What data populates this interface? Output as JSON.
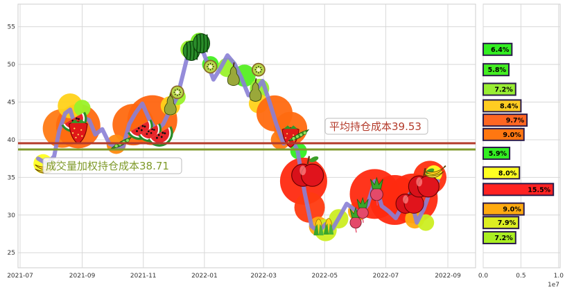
{
  "chart_data": [
    {
      "type": "line",
      "title": "",
      "xlabel": "",
      "ylabel": "",
      "ylim": [
        23,
        58
      ],
      "x_ticks": [
        "2021-07",
        "2021-09",
        "2021-11",
        "2022-01",
        "2022-03",
        "2022-05",
        "2022-07",
        "2022-09"
      ],
      "y_ticks": [
        25,
        30,
        35,
        40,
        45,
        50,
        55
      ],
      "grid": true,
      "series": [
        {
          "x": [
            "2021-07-19",
            "2021-07-28",
            "2021-08-04",
            "2021-08-09",
            "2021-08-15",
            "2021-08-20",
            "2021-08-25",
            "2021-09-01",
            "2021-09-08",
            "2021-09-14",
            "2021-09-21",
            "2021-09-28",
            "2021-10-06",
            "2021-10-12",
            "2021-10-18",
            "2021-10-24",
            "2021-10-31",
            "2021-11-07",
            "2021-11-14",
            "2021-11-21",
            "2021-11-28",
            "2021-12-05",
            "2021-12-11",
            "2021-12-17",
            "2021-12-22",
            "2021-12-27",
            "2022-01-03",
            "2022-01-10",
            "2022-01-17",
            "2022-01-24",
            "2022-01-31",
            "2022-02-07",
            "2022-02-14",
            "2022-02-21",
            "2022-02-28",
            "2022-03-07",
            "2022-03-14",
            "2022-03-21",
            "2022-03-28",
            "2022-04-04",
            "2022-04-11",
            "2022-04-18",
            "2022-04-25",
            "2022-05-02",
            "2022-05-09",
            "2022-05-16",
            "2022-05-23",
            "2022-05-30",
            "2022-06-06",
            "2022-06-13",
            "2022-06-20",
            "2022-06-27",
            "2022-07-04",
            "2022-07-11",
            "2022-07-18",
            "2022-07-25",
            "2022-08-01",
            "2022-08-08",
            "2022-08-15",
            "2022-08-22"
          ],
          "values": [
            37.5,
            36.8,
            37.8,
            41.2,
            43.5,
            44.0,
            41.8,
            43.0,
            42.6,
            40.7,
            41.4,
            39.5,
            38.9,
            39.1,
            42.1,
            43.5,
            44.8,
            42.7,
            41.2,
            42.1,
            44.0,
            45.7,
            48.9,
            52.1,
            51.3,
            53.0,
            50.5,
            48.0,
            49.5,
            51.2,
            50.1,
            48.2,
            45.9,
            46.5,
            47.8,
            45.0,
            42.0,
            39.5,
            40.5,
            38.5,
            33.0,
            28.5,
            27.8,
            28.8,
            28.2,
            29.8,
            31.5,
            30.8,
            30.1,
            31.4,
            34.5,
            31.2,
            30.5,
            29.6,
            31.3,
            32.8,
            29.0,
            30.8,
            33.4,
            34.5
          ],
          "color": "#8a7fd6"
        }
      ],
      "hlines": [
        {
          "label": "平均持仓成本39.53",
          "value": 39.53,
          "color": "#b33a2a"
        },
        {
          "label": "成交量加权持仓成本38.71",
          "value": 38.71,
          "color": "#7f9a2a"
        }
      ]
    },
    {
      "type": "bar",
      "orientation": "horizontal",
      "xlim": [
        0,
        10200000.0
      ],
      "x_ticks": [
        "0.0",
        "0.5",
        "1.0"
      ],
      "x_scale_label": "1e7",
      "bars": [
        {
          "price": 52.0,
          "value": 3800000.0,
          "label": "6.4%",
          "color": "#33ee22"
        },
        {
          "price": 49.3,
          "value": 3400000.0,
          "label": "5.8%",
          "color": "#44ee22"
        },
        {
          "price": 46.7,
          "value": 4300000.0,
          "label": "7.2%",
          "color": "#99ee33"
        },
        {
          "price": 44.5,
          "value": 5000000.0,
          "label": "8.4%",
          "color": "#ffcc22"
        },
        {
          "price": 42.6,
          "value": 5800000.0,
          "label": "9.7%",
          "color": "#ff6622"
        },
        {
          "price": 40.7,
          "value": 5400000.0,
          "label": "9.0%",
          "color": "#ff7711"
        },
        {
          "price": 38.2,
          "value": 3500000.0,
          "label": "5.9%",
          "color": "#33ee22"
        },
        {
          "price": 35.6,
          "value": 4800000.0,
          "label": "8.0%",
          "color": "#ffff22"
        },
        {
          "price": 33.4,
          "value": 9300000.0,
          "label": "15.5%",
          "color": "#ff2222"
        },
        {
          "price": 30.8,
          "value": 5400000.0,
          "label": "9.0%",
          "color": "#ffaa11"
        },
        {
          "price": 29.0,
          "value": 4700000.0,
          "label": "7.9%",
          "color": "#ddee22"
        },
        {
          "price": 27.0,
          "value": 4300000.0,
          "label": "7.2%",
          "color": "#aaee22"
        }
      ]
    }
  ],
  "decorations": {
    "blobs": [
      {
        "x": "2021-08-12",
        "y": 41.5,
        "r": 28,
        "color": "#ff7a14"
      },
      {
        "x": "2021-08-28",
        "y": 41.8,
        "r": 32,
        "color": "#ff6a10"
      },
      {
        "x": "2021-08-20",
        "y": 44.5,
        "r": 18,
        "color": "#ffd21a"
      },
      {
        "x": "2021-09-01",
        "y": 44.2,
        "r": 12,
        "color": "#9af22a"
      },
      {
        "x": "2021-07-24",
        "y": 36.8,
        "r": 14,
        "color": "#ffff22"
      },
      {
        "x": "2021-10-22",
        "y": 42.0,
        "r": 30,
        "color": "#ff6a10"
      },
      {
        "x": "2021-11-10",
        "y": 42.6,
        "r": 36,
        "color": "#ff6510"
      },
      {
        "x": "2021-10-05",
        "y": 39.4,
        "r": 14,
        "color": "#ff8a10"
      },
      {
        "x": "2021-11-28",
        "y": 44.5,
        "r": 14,
        "color": "#ffd21a"
      },
      {
        "x": "2021-12-05",
        "y": 45.7,
        "r": 12,
        "color": "#9af22a"
      },
      {
        "x": "2021-12-17",
        "y": 52.0,
        "r": 13,
        "color": "#9af22a"
      },
      {
        "x": "2021-12-27",
        "y": 53.0,
        "r": 13,
        "color": "#77ee22"
      },
      {
        "x": "2022-01-07",
        "y": 50.0,
        "r": 12,
        "color": "#44ee22"
      },
      {
        "x": "2022-01-24",
        "y": 49.6,
        "r": 14,
        "color": "#9af22a"
      },
      {
        "x": "2022-02-10",
        "y": 48.5,
        "r": 16,
        "color": "#55ee22"
      },
      {
        "x": "2022-02-25",
        "y": 46.8,
        "r": 14,
        "color": "#99ee33"
      },
      {
        "x": "2022-02-24",
        "y": 44.8,
        "r": 14,
        "color": "#ffd21a"
      },
      {
        "x": "2022-03-12",
        "y": 43.5,
        "r": 26,
        "color": "#ff6a10"
      },
      {
        "x": "2022-03-28",
        "y": 41.5,
        "r": 24,
        "color": "#ff6a10"
      },
      {
        "x": "2022-03-18",
        "y": 40.0,
        "r": 14,
        "color": "#ff7a14"
      },
      {
        "x": "2022-04-05",
        "y": 38.5,
        "r": 12,
        "color": "#33ee22"
      },
      {
        "x": "2022-04-10",
        "y": 34.5,
        "r": 34,
        "color": "#ff2a10"
      },
      {
        "x": "2022-04-16",
        "y": 31.0,
        "r": 22,
        "color": "#ff3a10"
      },
      {
        "x": "2022-04-25",
        "y": 28.5,
        "r": 14,
        "color": "#ffaa11"
      },
      {
        "x": "2022-05-02",
        "y": 28.0,
        "r": 16,
        "color": "#ccee22"
      },
      {
        "x": "2022-05-15",
        "y": 29.5,
        "r": 14,
        "color": "#ccee22"
      },
      {
        "x": "2022-06-03",
        "y": 30.5,
        "r": 14,
        "color": "#ffaa11"
      },
      {
        "x": "2022-06-20",
        "y": 32.8,
        "r": 36,
        "color": "#ff2a10"
      },
      {
        "x": "2022-07-10",
        "y": 32.0,
        "r": 36,
        "color": "#ff2a10"
      },
      {
        "x": "2022-07-28",
        "y": 32.2,
        "r": 36,
        "color": "#ff2a10"
      },
      {
        "x": "2022-08-14",
        "y": 35.0,
        "r": 24,
        "color": "#ff3010"
      },
      {
        "x": "2022-07-30",
        "y": 29.5,
        "r": 14,
        "color": "#ffaa11"
      },
      {
        "x": "2022-08-10",
        "y": 29.0,
        "r": 12,
        "color": "#ccee22"
      },
      {
        "x": "2022-08-18",
        "y": 35.5,
        "r": 12,
        "color": "#ffff22"
      }
    ],
    "icons": [
      {
        "kind": "banana-icon",
        "x": "2021-07-27",
        "y": 36.5,
        "s": 1.0
      },
      {
        "kind": "watermelon-slice-icon",
        "x": "2021-08-20",
        "y": 43.5,
        "s": 1.1
      },
      {
        "kind": "strawberry-icon",
        "x": "2021-08-28",
        "y": 41.5,
        "s": 1.1
      },
      {
        "kind": "peas-icon",
        "x": "2021-10-10",
        "y": 39.5,
        "s": 0.9
      },
      {
        "kind": "watermelon-slice-icon",
        "x": "2021-10-25",
        "y": 42.5,
        "s": 1.1
      },
      {
        "kind": "watermelon-slice-icon",
        "x": "2021-11-04",
        "y": 42.0,
        "s": 1.0
      },
      {
        "kind": "watermelon-slice-icon",
        "x": "2021-11-14",
        "y": 41.6,
        "s": 1.1
      },
      {
        "kind": "pear-icon",
        "x": "2021-11-28",
        "y": 44.7,
        "s": 0.9
      },
      {
        "kind": "kiwi-icon",
        "x": "2021-12-05",
        "y": 46.3,
        "s": 0.9
      },
      {
        "kind": "watermelon-icon",
        "x": "2021-12-19",
        "y": 51.8,
        "s": 1.0
      },
      {
        "kind": "watermelon-icon",
        "x": "2021-12-29",
        "y": 52.8,
        "s": 1.0
      },
      {
        "kind": "kiwi-icon",
        "x": "2022-01-07",
        "y": 49.7,
        "s": 0.9
      },
      {
        "kind": "pear-icon",
        "x": "2022-01-30",
        "y": 48.6,
        "s": 0.9
      },
      {
        "kind": "pear-icon",
        "x": "2022-02-21",
        "y": 46.5,
        "s": 0.9
      },
      {
        "kind": "kiwi-icon",
        "x": "2022-02-24",
        "y": 49.3,
        "s": 0.9
      },
      {
        "kind": "strawberry-icon",
        "x": "2022-03-28",
        "y": 40.8,
        "s": 1.0
      },
      {
        "kind": "peas-icon",
        "x": "2022-04-05",
        "y": 40.5,
        "s": 0.9
      },
      {
        "kind": "apple-icon",
        "x": "2022-04-14",
        "y": 35.5,
        "s": 1.15
      },
      {
        "kind": "corn-icon",
        "x": "2022-04-25",
        "y": 28.3,
        "s": 0.9
      },
      {
        "kind": "corn-icon",
        "x": "2022-05-05",
        "y": 28.4,
        "s": 0.9
      },
      {
        "kind": "radish-icon",
        "x": "2022-06-01",
        "y": 29.5,
        "s": 0.9
      },
      {
        "kind": "radish-icon",
        "x": "2022-06-08",
        "y": 30.8,
        "s": 0.9
      },
      {
        "kind": "radish-icon",
        "x": "2022-06-22",
        "y": 33.3,
        "s": 1.0
      },
      {
        "kind": "apple-icon",
        "x": "2022-07-25",
        "y": 31.7,
        "s": 1.0
      },
      {
        "kind": "apple-icon",
        "x": "2022-08-08",
        "y": 34.0,
        "s": 1.1
      },
      {
        "kind": "banana-icon",
        "x": "2022-08-18",
        "y": 35.8,
        "s": 0.9
      }
    ]
  }
}
